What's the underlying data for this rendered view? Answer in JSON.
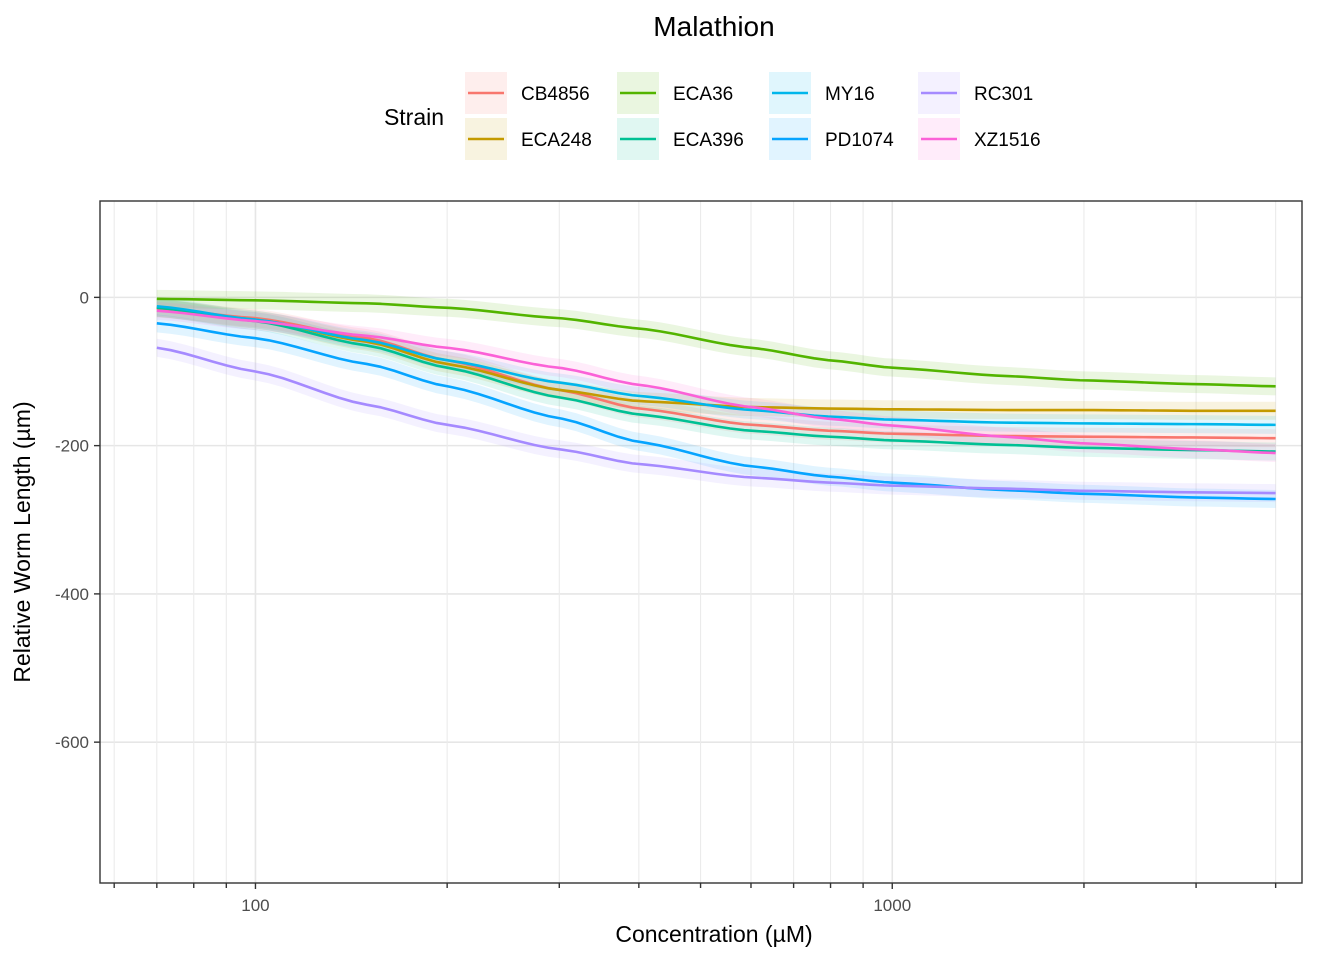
{
  "chart_data": {
    "type": "line",
    "title": "Malathion",
    "xlabel": "Concentration (µM)",
    "ylabel": "Relative Worm Length (µm)",
    "x_scale": "log",
    "xlim": [
      57,
      4400
    ],
    "ylim": [
      -790,
      130
    ],
    "x_ticks": [
      100,
      1000
    ],
    "x_tick_labels": [
      "100",
      "1000"
    ],
    "y_ticks": [
      0,
      -200,
      -400,
      -600
    ],
    "y_tick_labels": [
      "0",
      "-200",
      "-400",
      "-600"
    ],
    "grid": true,
    "legend": {
      "title": "Strain",
      "position": "top"
    },
    "x": [
      70,
      100,
      150,
      200,
      300,
      400,
      600,
      800,
      1000,
      1500,
      2000,
      3000,
      4000
    ],
    "series": [
      {
        "name": "CB4856",
        "color": "#F8766D",
        "values": [
          -15,
          -28,
          -55,
          -85,
          -125,
          -150,
          -172,
          -180,
          -184,
          -187,
          -188,
          -189,
          -190
        ]
      },
      {
        "name": "ECA248",
        "color": "#C49A00",
        "values": [
          -14,
          -30,
          -60,
          -90,
          -125,
          -140,
          -148,
          -150,
          -151,
          -152,
          -152,
          -153,
          -153
        ]
      },
      {
        "name": "ECA36",
        "color": "#53B400",
        "values": [
          -2,
          -4,
          -8,
          -14,
          -28,
          -42,
          -68,
          -85,
          -95,
          -106,
          -112,
          -117,
          -120
        ]
      },
      {
        "name": "ECA396",
        "color": "#00C094",
        "values": [
          -14,
          -32,
          -65,
          -95,
          -135,
          -158,
          -180,
          -188,
          -193,
          -199,
          -203,
          -206,
          -208
        ]
      },
      {
        "name": "MY16",
        "color": "#00B6EB",
        "values": [
          -12,
          -30,
          -58,
          -85,
          -115,
          -133,
          -152,
          -161,
          -165,
          -169,
          -170,
          -171,
          -172
        ]
      },
      {
        "name": "PD1074",
        "color": "#06A4FF",
        "values": [
          -35,
          -55,
          -90,
          -120,
          -163,
          -195,
          -228,
          -242,
          -250,
          -260,
          -265,
          -270,
          -272
        ]
      },
      {
        "name": "RC301",
        "color": "#A58AFF",
        "values": [
          -68,
          -100,
          -145,
          -172,
          -205,
          -225,
          -243,
          -250,
          -254,
          -258,
          -261,
          -263,
          -264
        ]
      },
      {
        "name": "XZ1516",
        "color": "#FB61D7",
        "values": [
          -18,
          -32,
          -52,
          -68,
          -95,
          -118,
          -148,
          -164,
          -173,
          -188,
          -197,
          -205,
          -210
        ]
      }
    ]
  }
}
